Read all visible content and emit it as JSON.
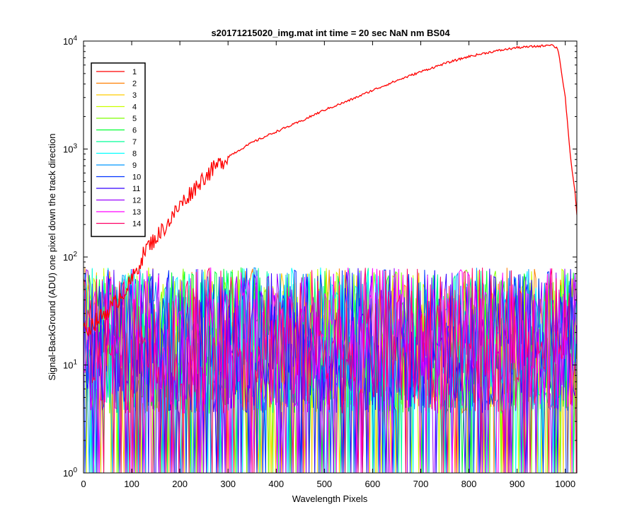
{
  "chart_data": {
    "type": "line",
    "title": "s20171215020_img.mat int time = 20 sec  NaN nm BS04",
    "xlabel": "Wavelength Pixels",
    "ylabel": "Signal-BackGround (ADU) one pixel down the track direction",
    "xlim": [
      0,
      1024
    ],
    "ylim": [
      1,
      10000
    ],
    "yscale": "log",
    "grid": false,
    "legend_position": "top-left",
    "x_ticks": [
      0,
      100,
      200,
      300,
      400,
      500,
      600,
      700,
      800,
      900,
      1000
    ],
    "y_ticks": [
      {
        "value": 1,
        "base": "10",
        "exp": "0"
      },
      {
        "value": 10,
        "base": "10",
        "exp": "1"
      },
      {
        "value": 100,
        "base": "10",
        "exp": "2"
      },
      {
        "value": 1000,
        "base": "10",
        "exp": "3"
      },
      {
        "value": 10000,
        "base": "10",
        "exp": "4"
      }
    ],
    "series": [
      {
        "name": "1",
        "color": "#ff0000",
        "x": [
          0,
          60,
          80,
          100,
          130,
          150,
          180,
          200,
          250,
          300,
          350,
          400,
          450,
          500,
          550,
          600,
          650,
          700,
          750,
          800,
          850,
          900,
          950,
          970,
          985,
          1000,
          1010,
          1020,
          1024
        ],
        "y": [
          20,
          35,
          45,
          60,
          120,
          150,
          220,
          300,
          550,
          850,
          1150,
          1450,
          1800,
          2300,
          2800,
          3500,
          4300,
          5200,
          6200,
          7200,
          8000,
          8700,
          9000,
          9300,
          8500,
          3000,
          900,
          400,
          250
        ]
      },
      {
        "name": "2",
        "color": "#ff7f00",
        "noise": true
      },
      {
        "name": "3",
        "color": "#ffcc00",
        "noise": true
      },
      {
        "name": "4",
        "color": "#ccff00",
        "noise": true
      },
      {
        "name": "5",
        "color": "#7fff00",
        "noise": true
      },
      {
        "name": "6",
        "color": "#00ff33",
        "noise": true
      },
      {
        "name": "7",
        "color": "#00ff99",
        "noise": true
      },
      {
        "name": "8",
        "color": "#00ffff",
        "noise": true
      },
      {
        "name": "9",
        "color": "#0099ff",
        "noise": true
      },
      {
        "name": "10",
        "color": "#0033ff",
        "noise": true
      },
      {
        "name": "11",
        "color": "#3300ff",
        "noise": true
      },
      {
        "name": "12",
        "color": "#9900ff",
        "noise": true
      },
      {
        "name": "13",
        "color": "#ff00ff",
        "noise": true
      },
      {
        "name": "14",
        "color": "#ff0066",
        "noise": true
      }
    ],
    "noise_range": [
      1,
      80
    ]
  }
}
